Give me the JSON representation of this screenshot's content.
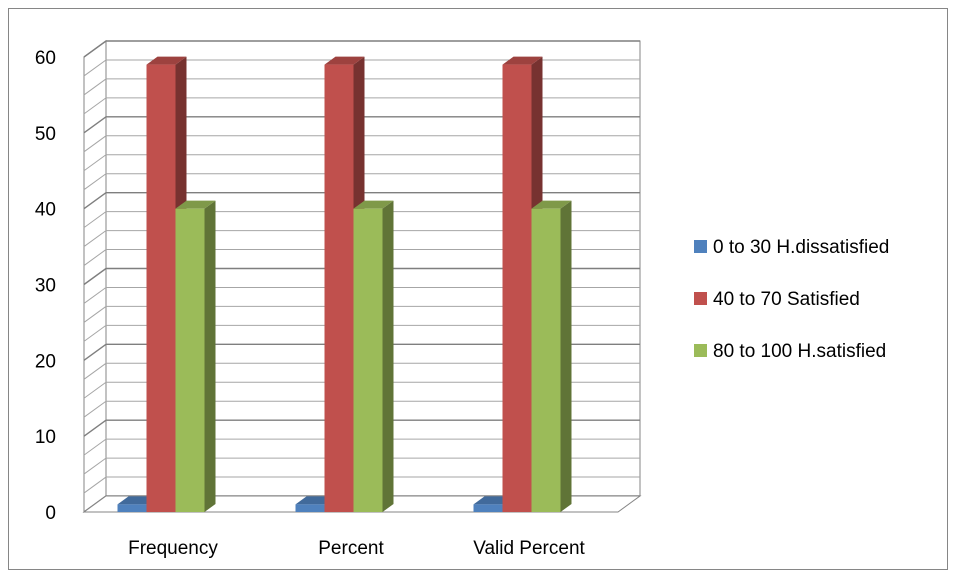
{
  "chart_data": {
    "type": "bar",
    "style": "3d-clustered-column",
    "title": "",
    "xlabel": "",
    "ylabel": "",
    "categories": [
      "Frequency",
      "Percent",
      "Valid Percent"
    ],
    "series": [
      {
        "name": "0 to 30 H.dissatisfied",
        "values": [
          1,
          1,
          1
        ],
        "color": "#4F81BD"
      },
      {
        "name": "40 to 70 Satisfied",
        "values": [
          59,
          59,
          59
        ],
        "color": "#C0504D"
      },
      {
        "name": "80 to 100 H.satisfied",
        "values": [
          40,
          40,
          40
        ],
        "color": "#9BBB59"
      }
    ],
    "ylim": [
      0,
      60
    ],
    "yticks": [
      0,
      10,
      20,
      30,
      40,
      50,
      60
    ],
    "minor_gridlines_per_major": 3,
    "grid": true,
    "legend_position": "right"
  }
}
